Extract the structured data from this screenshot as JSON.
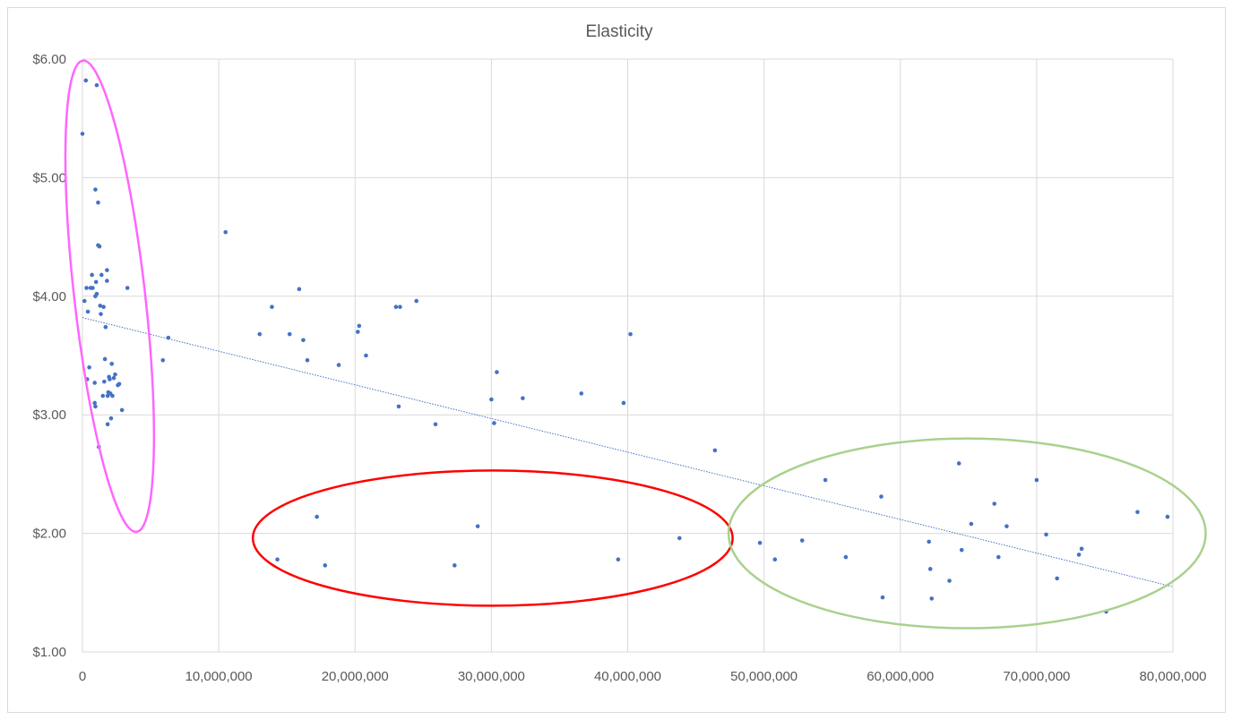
{
  "chart_data": {
    "type": "scatter",
    "title": "Elasticity",
    "xlabel": "",
    "ylabel": "",
    "xlim": [
      0,
      80000000
    ],
    "ylim": [
      1,
      6
    ],
    "x_ticks": [
      "0",
      "10,000,000",
      "20,000,000",
      "30,000,000",
      "40,000,000",
      "50,000,000",
      "60,000,000",
      "70,000,000",
      "80,000,000"
    ],
    "y_ticks": [
      "$1.00",
      "$2.00",
      "$3.00",
      "$4.00",
      "$5.00",
      "$6.00"
    ],
    "grid": true,
    "legend": "none",
    "colors": {
      "points": "#4472c4",
      "trendline": "#4472c4",
      "ellipse_low_volume": "#ff66ff",
      "ellipse_mid_volume": "#ff0000",
      "ellipse_high_volume": "#a9d18e",
      "grid": "#d9d9d9",
      "text": "#595959"
    },
    "trendline": {
      "type": "linear",
      "from": [
        0,
        3.82
      ],
      "to": [
        80000000,
        1.55
      ]
    },
    "ellipses": [
      {
        "name": "low-volume-cluster",
        "color": "#ff66ff",
        "center": [
          2000000,
          4.0
        ],
        "radius": [
          2600000,
          2.0
        ],
        "rotation_deg": -6.5
      },
      {
        "name": "mid-volume-cluster",
        "color": "#ff0000",
        "center": [
          30100000,
          1.96
        ],
        "radius": [
          17600000,
          0.57
        ],
        "rotation_deg": 0
      },
      {
        "name": "high-volume-cluster",
        "color": "#a9d18e",
        "center": [
          64900000,
          2.0
        ],
        "radius": [
          17500000,
          0.8
        ],
        "rotation_deg": 0
      }
    ],
    "series": [
      {
        "points": [
          [
            0,
            5.37
          ],
          [
            150000,
            3.96
          ],
          [
            250000,
            5.82
          ],
          [
            300000,
            4.07
          ],
          [
            350000,
            3.3
          ],
          [
            400000,
            3.87
          ],
          [
            500000,
            3.4
          ],
          [
            600000,
            4.07
          ],
          [
            700000,
            4.18
          ],
          [
            750000,
            4.07
          ],
          [
            900000,
            3.1
          ],
          [
            950000,
            3.07
          ],
          [
            900000,
            3.27
          ],
          [
            950000,
            4.9
          ],
          [
            950000,
            4.0
          ],
          [
            1000000,
            4.12
          ],
          [
            1050000,
            4.02
          ],
          [
            1050000,
            5.78
          ],
          [
            1150000,
            4.79
          ],
          [
            1150000,
            4.43
          ],
          [
            1200000,
            2.73
          ],
          [
            1250000,
            4.42
          ],
          [
            1300000,
            3.92
          ],
          [
            1350000,
            3.85
          ],
          [
            1400000,
            4.18
          ],
          [
            1500000,
            3.16
          ],
          [
            1550000,
            3.91
          ],
          [
            1600000,
            3.28
          ],
          [
            1650000,
            3.47
          ],
          [
            1700000,
            3.74
          ],
          [
            1800000,
            4.13
          ],
          [
            1800000,
            4.22
          ],
          [
            1900000,
            3.19
          ],
          [
            1850000,
            2.92
          ],
          [
            1850000,
            3.16
          ],
          [
            1950000,
            3.32
          ],
          [
            2000000,
            3.3
          ],
          [
            2050000,
            3.18
          ],
          [
            2100000,
            2.97
          ],
          [
            2150000,
            3.43
          ],
          [
            2200000,
            3.16
          ],
          [
            2300000,
            3.31
          ],
          [
            2400000,
            3.34
          ],
          [
            2600000,
            3.25
          ],
          [
            2700000,
            3.26
          ],
          [
            2900000,
            3.04
          ],
          [
            3300000,
            4.07
          ],
          [
            5900000,
            3.46
          ],
          [
            6300000,
            3.65
          ],
          [
            10500000,
            4.54
          ],
          [
            13000000,
            3.68
          ],
          [
            13900000,
            3.91
          ],
          [
            15200000,
            3.68
          ],
          [
            15900000,
            4.06
          ],
          [
            16200000,
            3.63
          ],
          [
            16500000,
            3.46
          ],
          [
            18800000,
            3.42
          ],
          [
            20200000,
            3.7
          ],
          [
            20300000,
            3.75
          ],
          [
            20800000,
            3.5
          ],
          [
            23000000,
            3.91
          ],
          [
            23300000,
            3.91
          ],
          [
            23200000,
            3.07
          ],
          [
            24500000,
            3.96
          ],
          [
            25900000,
            2.92
          ],
          [
            30000000,
            3.13
          ],
          [
            30200000,
            2.93
          ],
          [
            30400000,
            3.36
          ],
          [
            32300000,
            3.14
          ],
          [
            36600000,
            3.18
          ],
          [
            39700000,
            3.1
          ],
          [
            40200000,
            3.68
          ],
          [
            46400000,
            2.7
          ],
          [
            14300000,
            1.78
          ],
          [
            17200000,
            2.14
          ],
          [
            17800000,
            1.73
          ],
          [
            27300000,
            1.73
          ],
          [
            29000000,
            2.06
          ],
          [
            39300000,
            1.78
          ],
          [
            43800000,
            1.96
          ],
          [
            49700000,
            1.92
          ],
          [
            50800000,
            1.78
          ],
          [
            52800000,
            1.94
          ],
          [
            54500000,
            2.45
          ],
          [
            56000000,
            1.8
          ],
          [
            58600000,
            2.31
          ],
          [
            58700000,
            1.46
          ],
          [
            62100000,
            1.93
          ],
          [
            62200000,
            1.7
          ],
          [
            62300000,
            1.45
          ],
          [
            63600000,
            1.6
          ],
          [
            64300000,
            2.59
          ],
          [
            64500000,
            1.86
          ],
          [
            65200000,
            2.08
          ],
          [
            66900000,
            2.25
          ],
          [
            67200000,
            1.8
          ],
          [
            67800000,
            2.06
          ],
          [
            70000000,
            2.45
          ],
          [
            70700000,
            1.99
          ],
          [
            71500000,
            1.62
          ],
          [
            73100000,
            1.82
          ],
          [
            73300000,
            1.87
          ],
          [
            75100000,
            1.34
          ],
          [
            77400000,
            2.18
          ],
          [
            79600000,
            2.14
          ]
        ]
      }
    ]
  }
}
